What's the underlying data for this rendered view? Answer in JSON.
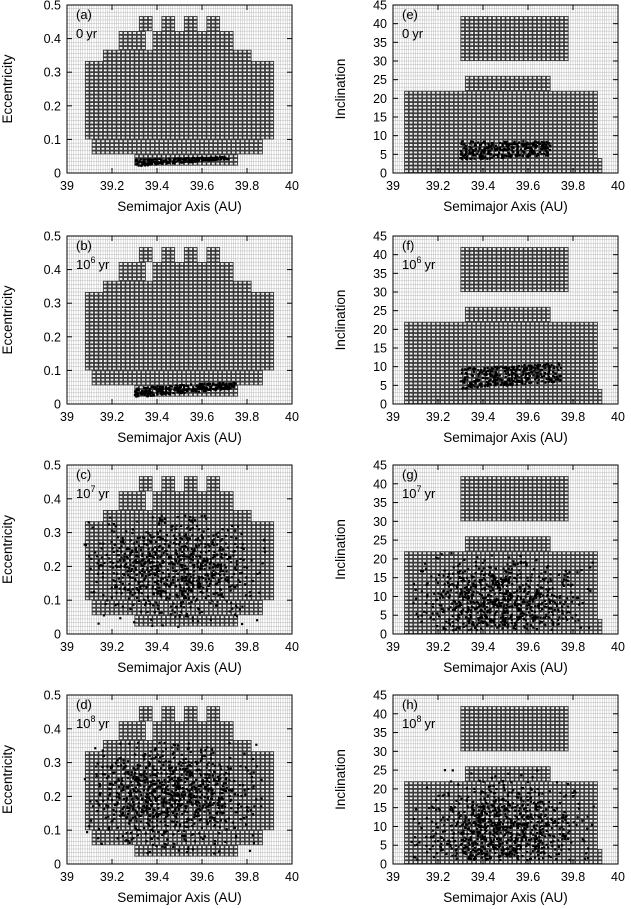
{
  "figure": {
    "xlabel": "Semimajor Axis (AU)",
    "x_ticks": [
      "39",
      "39.2",
      "39.4",
      "39.6",
      "39.8",
      "40"
    ]
  },
  "chart_data": [
    {
      "type": "scatter",
      "panel_label": "(a)",
      "time_base": "0",
      "time_exp": "",
      "time_unit": "yr",
      "xlabel": "Semimajor Axis (AU)",
      "ylabel": "Eccentricity",
      "xlim": [
        39,
        40
      ],
      "ylim": [
        0,
        0.5
      ],
      "x_ticks": [
        "39",
        "39.2",
        "39.4",
        "39.6",
        "39.8",
        "40"
      ],
      "y_ticks": [
        "0",
        "0.1",
        "0.2",
        "0.3",
        "0.4",
        "0.5"
      ],
      "grid": true,
      "stable_region": "ecc",
      "distribution": {
        "pattern": "band",
        "a_range": [
          39.3,
          39.72
        ],
        "y_start": [
          0.02,
          0.04
        ],
        "y_end": [
          0.04,
          0.048
        ],
        "count": 240
      }
    },
    {
      "type": "scatter",
      "panel_label": "(b)",
      "time_base": "10",
      "time_exp": "6",
      "time_unit": "yr",
      "xlabel": "Semimajor Axis (AU)",
      "ylabel": "Eccentricity",
      "xlim": [
        39,
        40
      ],
      "ylim": [
        0,
        0.5
      ],
      "x_ticks": [
        "39",
        "39.2",
        "39.4",
        "39.6",
        "39.8",
        "40"
      ],
      "y_ticks": [
        "0",
        "0.1",
        "0.2",
        "0.3",
        "0.4",
        "0.5"
      ],
      "grid": true,
      "stable_region": "ecc",
      "distribution": {
        "pattern": "band",
        "a_range": [
          39.3,
          39.75
        ],
        "y_start": [
          0.02,
          0.05
        ],
        "y_end": [
          0.045,
          0.065
        ],
        "count": 300
      }
    },
    {
      "type": "scatter",
      "panel_label": "(c)",
      "time_base": "10",
      "time_exp": "7",
      "time_unit": "yr",
      "xlabel": "Semimajor Axis (AU)",
      "ylabel": "Eccentricity",
      "xlim": [
        39,
        40
      ],
      "ylim": [
        0,
        0.5
      ],
      "x_ticks": [
        "39",
        "39.2",
        "39.4",
        "39.6",
        "39.8",
        "40"
      ],
      "y_ticks": [
        "0",
        "0.1",
        "0.2",
        "0.3",
        "0.4",
        "0.5"
      ],
      "grid": true,
      "stable_region": "ecc",
      "distribution": {
        "pattern": "cloud",
        "a_range": [
          39.07,
          39.88
        ],
        "y_range": [
          0.02,
          0.35
        ],
        "a_center": 39.47,
        "y_center": 0.2,
        "a_sigma": 0.17,
        "y_sigma": 0.075,
        "count": 900
      }
    },
    {
      "type": "scatter",
      "panel_label": "(d)",
      "time_base": "10",
      "time_exp": "8",
      "time_unit": "yr",
      "xlabel": "Semimajor Axis (AU)",
      "ylabel": "Eccentricity",
      "xlim": [
        39,
        40
      ],
      "ylim": [
        0,
        0.5
      ],
      "x_ticks": [
        "39",
        "39.2",
        "39.4",
        "39.6",
        "39.8",
        "40"
      ],
      "y_ticks": [
        "0",
        "0.1",
        "0.2",
        "0.3",
        "0.4",
        "0.5"
      ],
      "grid": true,
      "stable_region": "ecc",
      "distribution": {
        "pattern": "cloud",
        "a_range": [
          39.07,
          39.88
        ],
        "y_range": [
          0.03,
          0.36
        ],
        "a_center": 39.47,
        "y_center": 0.21,
        "a_sigma": 0.17,
        "y_sigma": 0.07,
        "count": 1000
      }
    },
    {
      "type": "scatter",
      "panel_label": "(e)",
      "time_base": "0",
      "time_exp": "",
      "time_unit": "yr",
      "xlabel": "Semimajor Axis (AU)",
      "ylabel": "Inclination",
      "xlim": [
        39,
        40
      ],
      "ylim": [
        0,
        45
      ],
      "x_ticks": [
        "39",
        "39.2",
        "39.4",
        "39.6",
        "39.8",
        "40"
      ],
      "y_ticks": [
        "0",
        "5",
        "10",
        "15",
        "20",
        "25",
        "30",
        "35",
        "40",
        "45"
      ],
      "grid": true,
      "stable_region": "inc",
      "distribution": {
        "pattern": "band",
        "a_range": [
          39.3,
          39.7
        ],
        "y_start": [
          3.5,
          8.5
        ],
        "y_end": [
          4.5,
          8.5
        ],
        "count": 300
      }
    },
    {
      "type": "scatter",
      "panel_label": "(f)",
      "time_base": "10",
      "time_exp": "6",
      "time_unit": "yr",
      "xlabel": "Semimajor Axis (AU)",
      "ylabel": "Inclination",
      "xlim": [
        39,
        40
      ],
      "ylim": [
        0,
        45
      ],
      "x_ticks": [
        "39",
        "39.2",
        "39.4",
        "39.6",
        "39.8",
        "40"
      ],
      "y_ticks": [
        "0",
        "5",
        "10",
        "15",
        "20",
        "25",
        "30",
        "35",
        "40",
        "45"
      ],
      "grid": true,
      "stable_region": "inc",
      "distribution": {
        "pattern": "band",
        "a_range": [
          39.3,
          39.75
        ],
        "y_start": [
          4,
          9.5
        ],
        "y_end": [
          6,
          11
        ],
        "count": 340
      }
    },
    {
      "type": "scatter",
      "panel_label": "(g)",
      "time_base": "10",
      "time_exp": "7",
      "time_unit": "yr",
      "xlabel": "Semimajor Axis (AU)",
      "ylabel": "Inclination",
      "xlim": [
        39,
        40
      ],
      "ylim": [
        0,
        45
      ],
      "x_ticks": [
        "39",
        "39.2",
        "39.4",
        "39.6",
        "39.8",
        "40"
      ],
      "y_ticks": [
        "0",
        "5",
        "10",
        "15",
        "20",
        "25",
        "30",
        "35",
        "40",
        "45"
      ],
      "grid": true,
      "stable_region": "inc",
      "distribution": {
        "pattern": "cloud",
        "a_range": [
          39.08,
          39.9
        ],
        "y_range": [
          1,
          22
        ],
        "a_center": 39.48,
        "y_center": 8,
        "a_sigma": 0.17,
        "y_sigma": 5.5,
        "count": 900
      }
    },
    {
      "type": "scatter",
      "panel_label": "(h)",
      "time_base": "10",
      "time_exp": "8",
      "time_unit": "yr",
      "xlabel": "Semimajor Axis (AU)",
      "ylabel": "Inclination",
      "xlim": [
        39,
        40
      ],
      "ylim": [
        0,
        45
      ],
      "x_ticks": [
        "39",
        "39.2",
        "39.4",
        "39.6",
        "39.8",
        "40"
      ],
      "y_ticks": [
        "0",
        "5",
        "10",
        "15",
        "20",
        "25",
        "30",
        "35",
        "40",
        "45"
      ],
      "grid": true,
      "stable_region": "inc",
      "distribution": {
        "pattern": "cloud",
        "a_range": [
          39.08,
          39.9
        ],
        "y_range": [
          1,
          25
        ],
        "a_center": 39.48,
        "y_center": 9,
        "a_sigma": 0.17,
        "y_sigma": 6,
        "count": 1000
      }
    }
  ]
}
